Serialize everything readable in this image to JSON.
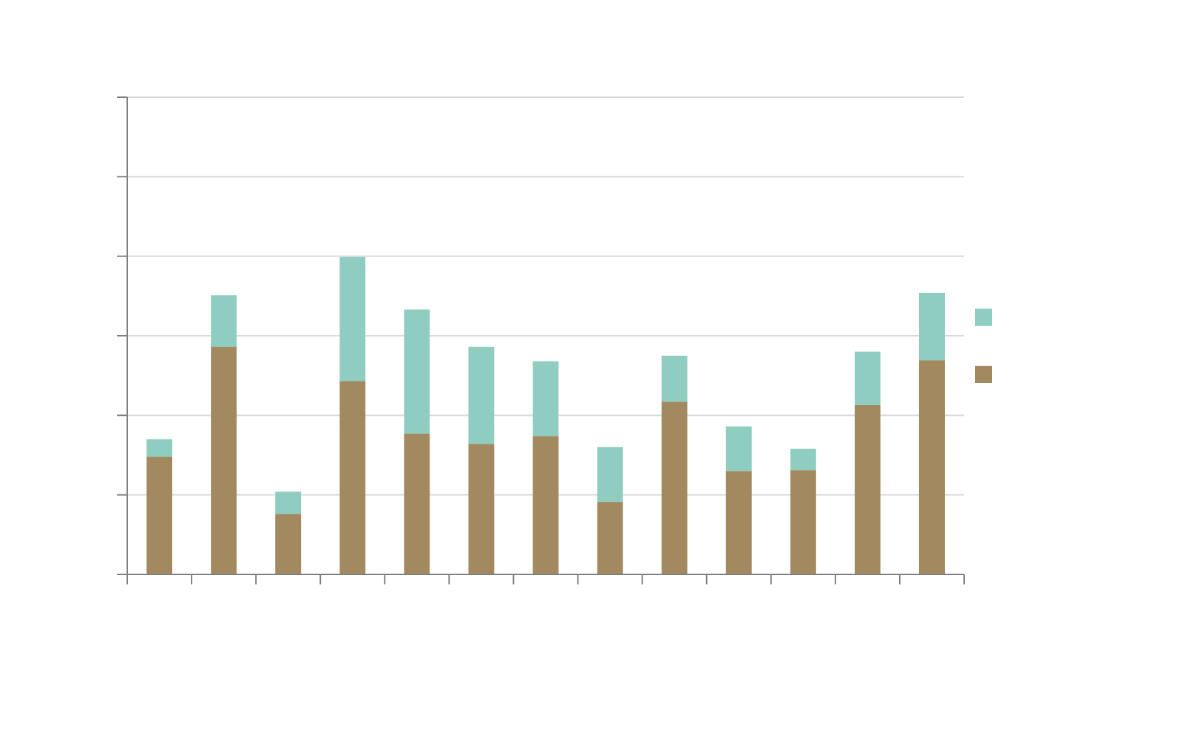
{
  "chart_data": {
    "type": "bar",
    "stacked": true,
    "title": "",
    "xlabel": "",
    "ylabel": "",
    "ylim": [
      0,
      6
    ],
    "yticks": [
      0,
      1,
      2,
      3,
      4,
      5,
      6
    ],
    "grid": true,
    "legend_position": "right",
    "categories": [
      "",
      "",
      "",
      "",
      "",
      "",
      "",
      "",
      "",
      "",
      "",
      "",
      ""
    ],
    "series": [
      {
        "name": "",
        "color": "#a3895f",
        "values": [
          1.48,
          2.86,
          0.76,
          2.43,
          1.77,
          1.64,
          1.74,
          0.91,
          2.17,
          1.3,
          1.31,
          2.13,
          2.69
        ]
      },
      {
        "name": "",
        "color": "#90cdc1",
        "values": [
          0.22,
          0.65,
          0.28,
          1.56,
          1.56,
          1.22,
          0.94,
          0.69,
          0.58,
          0.56,
          0.27,
          0.67,
          0.85
        ]
      }
    ],
    "axis_color": "#808080",
    "grid_color": "#d9d9d9"
  }
}
